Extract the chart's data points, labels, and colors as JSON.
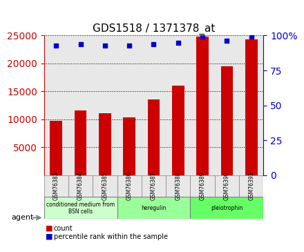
{
  "title": "GDS1518 / 1371378_at",
  "categories": [
    "GSM76383",
    "GSM76384",
    "GSM76385",
    "GSM76386",
    "GSM76387",
    "GSM76388",
    "GSM76389",
    "GSM76390",
    "GSM76391"
  ],
  "counts": [
    9700,
    11600,
    11100,
    10400,
    13600,
    16000,
    24800,
    19500,
    24300
  ],
  "percentiles": [
    93,
    94,
    93,
    93,
    94,
    95,
    99,
    96,
    99
  ],
  "groups": [
    {
      "label": "conditioned medium from\nBSN cells",
      "start": 0,
      "end": 3,
      "color": "#ccffcc"
    },
    {
      "label": "heregulin",
      "start": 3,
      "end": 6,
      "color": "#99ff99"
    },
    {
      "label": "pleiotrophin",
      "start": 6,
      "end": 9,
      "color": "#66ff66"
    }
  ],
  "ylim_left": [
    0,
    25000
  ],
  "ylim_right": [
    0,
    100
  ],
  "yticks_left": [
    5000,
    10000,
    15000,
    20000,
    25000
  ],
  "yticks_right": [
    0,
    25,
    50,
    75,
    100
  ],
  "bar_color": "#cc0000",
  "dot_color": "#0000cc",
  "left_axis_color": "#cc0000",
  "right_axis_color": "#0000cc",
  "bg_color": "#e8e8e8",
  "agent_label": "agent"
}
